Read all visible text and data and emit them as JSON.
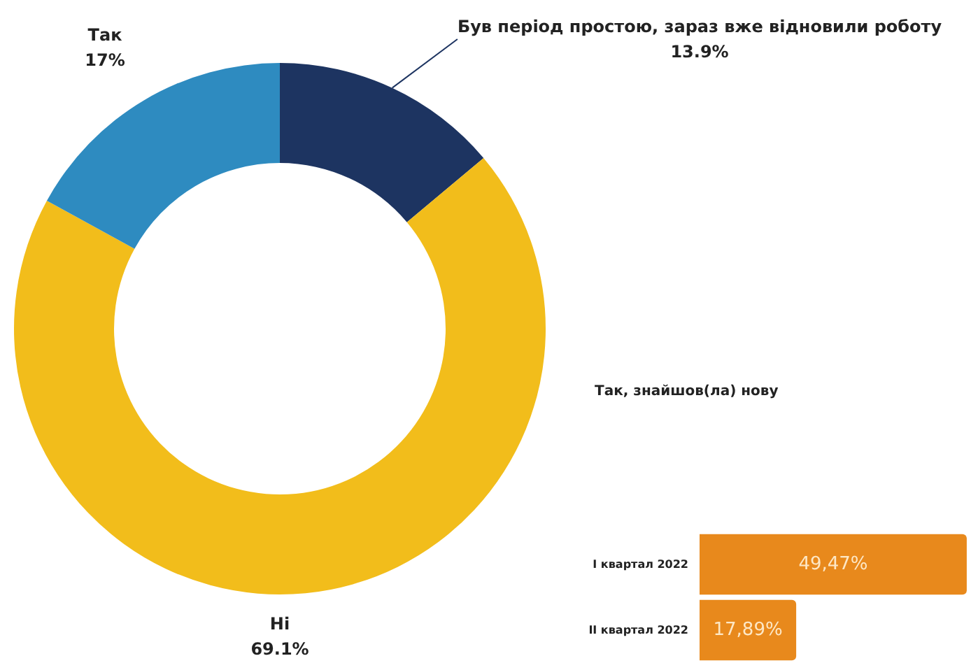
{
  "chart_data": [
    {
      "type": "donut",
      "categories": [
        "Був період простою, зараз вже відновили роботу",
        "Ні",
        "Так"
      ],
      "values": [
        13.9,
        69.1,
        17
      ],
      "value_labels": [
        "13.9%",
        "69.1%",
        "17%"
      ],
      "colors": [
        "#1d3461",
        "#f2bd1b",
        "#2e8bc0"
      ],
      "legend": false
    },
    {
      "type": "bar",
      "orientation": "horizontal",
      "title": "Так, знайшов(ла) нову",
      "categories": [
        "I квартал 2022",
        "II квартал 2022"
      ],
      "values": [
        49.47,
        17.89
      ],
      "value_labels": [
        "49,47%",
        "17,89%"
      ],
      "color": "#e8891c",
      "legend": false
    }
  ]
}
